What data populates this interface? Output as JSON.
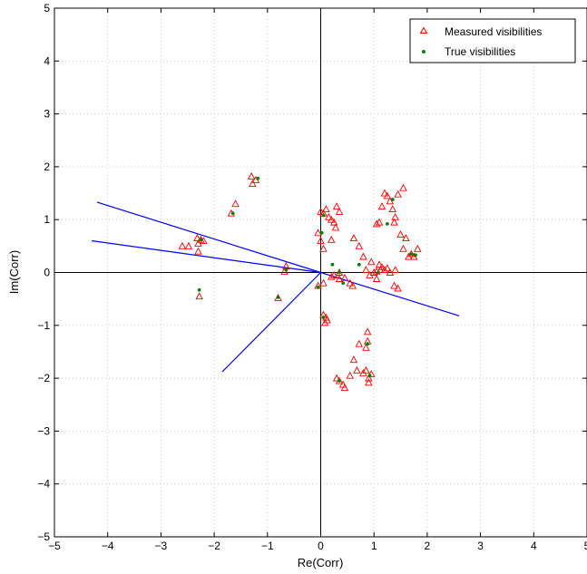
{
  "chart_data": {
    "type": "scatter",
    "title": "",
    "xlabel": "Re(Corr)",
    "ylabel": "Im(Corr)",
    "xlim": [
      -5,
      5
    ],
    "ylim": [
      -5,
      5
    ],
    "xticks": [
      -5,
      -4,
      -3,
      -2,
      -1,
      0,
      1,
      2,
      3,
      4,
      5
    ],
    "yticks": [
      -5,
      -4,
      -3,
      -2,
      -1,
      0,
      1,
      2,
      3,
      4,
      5
    ],
    "xtick_labels": [
      "−5",
      "−4",
      "−3",
      "−2",
      "−1",
      "0",
      "1",
      "2",
      "3",
      "4",
      "5"
    ],
    "ytick_labels": [
      "−5",
      "−4",
      "−3",
      "−2",
      "−1",
      "0",
      "1",
      "2",
      "3",
      "4",
      "5"
    ],
    "grid": true,
    "legend_position": "top-right",
    "colors": {
      "measured": "#ff0000",
      "true": "#008000",
      "lines": "#0000ff",
      "axes": "#000000",
      "grid": "#b0b0b0"
    },
    "series": [
      {
        "name": "Measured visibilities",
        "marker": "triangle",
        "points": [
          [
            -1.3,
            1.82
          ],
          [
            -1.28,
            1.68
          ],
          [
            -1.22,
            1.75
          ],
          [
            -1.6,
            1.3
          ],
          [
            -1.68,
            1.12
          ],
          [
            -2.6,
            0.5
          ],
          [
            -2.48,
            0.5
          ],
          [
            -2.32,
            0.65
          ],
          [
            -2.3,
            0.55
          ],
          [
            -2.25,
            0.62
          ],
          [
            -2.2,
            0.6
          ],
          [
            -2.3,
            0.4
          ],
          [
            -2.28,
            -0.45
          ],
          [
            -0.65,
            0.12
          ],
          [
            -0.68,
            0.02
          ],
          [
            -0.8,
            -0.48
          ],
          [
            -0.05,
            -0.25
          ],
          [
            0.05,
            -0.2
          ],
          [
            0.0,
            1.15
          ],
          [
            0.05,
            1.12
          ],
          [
            0.1,
            1.2
          ],
          [
            0.15,
            1.05
          ],
          [
            0.2,
            1.0
          ],
          [
            0.25,
            0.95
          ],
          [
            0.3,
            1.25
          ],
          [
            0.35,
            1.15
          ],
          [
            0.28,
            0.85
          ],
          [
            0.2,
            0.62
          ],
          [
            0.05,
            0.45
          ],
          [
            -0.05,
            0.75
          ],
          [
            0.0,
            0.6
          ],
          [
            0.05,
            -0.8
          ],
          [
            0.1,
            -0.85
          ],
          [
            0.12,
            -0.9
          ],
          [
            0.08,
            -0.95
          ],
          [
            0.2,
            -0.08
          ],
          [
            0.25,
            -0.05
          ],
          [
            0.35,
            0.0
          ],
          [
            0.45,
            -0.1
          ],
          [
            0.55,
            -0.2
          ],
          [
            0.6,
            -0.25
          ],
          [
            0.35,
            -0.12
          ],
          [
            0.3,
            -2.0
          ],
          [
            0.35,
            -2.05
          ],
          [
            0.42,
            -2.12
          ],
          [
            0.45,
            -2.18
          ],
          [
            0.55,
            -1.95
          ],
          [
            0.62,
            -1.65
          ],
          [
            0.68,
            -1.85
          ],
          [
            0.72,
            -1.35
          ],
          [
            0.8,
            -1.9
          ],
          [
            0.85,
            -1.85
          ],
          [
            0.9,
            -2.0
          ],
          [
            0.95,
            -1.92
          ],
          [
            0.9,
            -2.08
          ],
          [
            0.85,
            -1.42
          ],
          [
            0.88,
            -1.3
          ],
          [
            0.88,
            -1.12
          ],
          [
            0.62,
            0.65
          ],
          [
            0.72,
            0.5
          ],
          [
            0.8,
            0.3
          ],
          [
            0.85,
            0.05
          ],
          [
            0.92,
            -0.05
          ],
          [
            0.95,
            0.2
          ],
          [
            1.0,
            0.0
          ],
          [
            1.05,
            -0.12
          ],
          [
            1.1,
            0.15
          ],
          [
            1.05,
            0.02
          ],
          [
            1.12,
            0.05
          ],
          [
            1.15,
            0.1
          ],
          [
            1.2,
            0.05
          ],
          [
            1.25,
            0.08
          ],
          [
            1.3,
            0.0
          ],
          [
            1.4,
            0.05
          ],
          [
            1.38,
            -0.25
          ],
          [
            1.45,
            -0.3
          ],
          [
            1.05,
            0.92
          ],
          [
            1.1,
            0.95
          ],
          [
            1.15,
            1.25
          ],
          [
            1.2,
            1.5
          ],
          [
            1.25,
            1.45
          ],
          [
            1.3,
            1.35
          ],
          [
            1.35,
            1.2
          ],
          [
            1.4,
            1.05
          ],
          [
            1.38,
            0.95
          ],
          [
            1.45,
            1.48
          ],
          [
            1.55,
            1.6
          ],
          [
            1.5,
            0.72
          ],
          [
            1.6,
            0.65
          ],
          [
            1.55,
            0.45
          ],
          [
            1.65,
            0.3
          ],
          [
            1.7,
            0.35
          ],
          [
            1.75,
            0.3
          ],
          [
            1.82,
            0.45
          ]
        ]
      },
      {
        "name": "True visibilities",
        "marker": "dot",
        "points": [
          [
            -1.18,
            1.78
          ],
          [
            -1.65,
            1.12
          ],
          [
            -2.25,
            0.62
          ],
          [
            -2.28,
            -0.33
          ],
          [
            -0.8,
            -0.47
          ],
          [
            -0.65,
            0.05
          ],
          [
            -0.05,
            -0.28
          ],
          [
            0.05,
            1.08
          ],
          [
            0.02,
            0.75
          ],
          [
            0.22,
            0.15
          ],
          [
            0.35,
            0.0
          ],
          [
            0.42,
            -0.2
          ],
          [
            0.05,
            -0.85
          ],
          [
            0.35,
            -2.05
          ],
          [
            0.72,
            0.15
          ],
          [
            0.88,
            -1.35
          ],
          [
            0.92,
            -1.95
          ],
          [
            1.08,
            0.0
          ],
          [
            1.25,
            0.92
          ],
          [
            1.35,
            1.38
          ],
          [
            1.7,
            0.35
          ],
          [
            1.78,
            0.33
          ]
        ]
      }
    ],
    "lines": [
      {
        "from": [
          0,
          0
        ],
        "to": [
          -4.2,
          1.33
        ]
      },
      {
        "from": [
          0,
          0
        ],
        "to": [
          -4.3,
          0.6
        ]
      },
      {
        "from": [
          0,
          0
        ],
        "to": [
          2.6,
          -0.82
        ]
      },
      {
        "from": [
          0,
          0
        ],
        "to": [
          -1.85,
          -1.88
        ]
      }
    ]
  }
}
